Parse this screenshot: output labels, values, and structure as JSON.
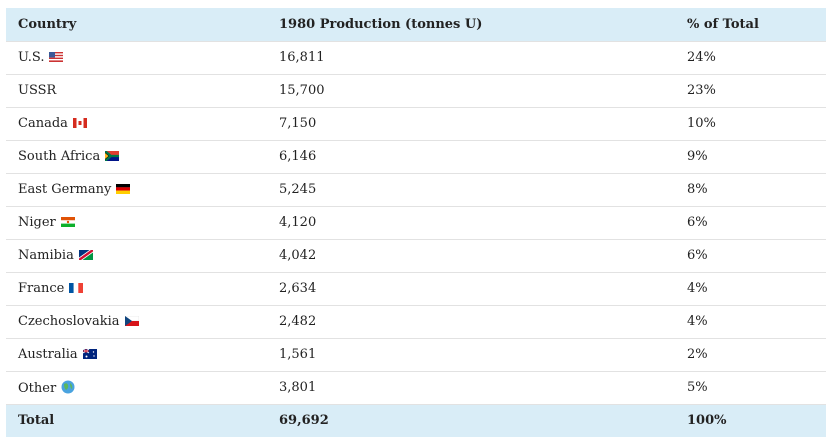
{
  "table": {
    "header": [
      "Country",
      "1980 Production (tonnes U)",
      "% of Total"
    ],
    "rows": [
      [
        "U.S.",
        "16,811",
        "24%"
      ],
      [
        "USSR",
        "15,700",
        "23%"
      ],
      [
        "Canada",
        "7,150",
        "10%"
      ],
      [
        "South Africa",
        "6,146",
        "9%"
      ],
      [
        "East Germany",
        "5,245",
        "8%"
      ],
      [
        "Niger",
        "4,120",
        "6%"
      ],
      [
        "Namibia",
        "4,042",
        "6%"
      ],
      [
        "France",
        "2,634",
        "4%"
      ],
      [
        "Czechoslovakia",
        "2,482",
        "4%"
      ],
      [
        "Australia",
        "1,561",
        "2%"
      ],
      [
        "Other",
        "3,801",
        "5%"
      ]
    ],
    "total": [
      "Total",
      "69,692",
      "100%"
    ]
  }
}
